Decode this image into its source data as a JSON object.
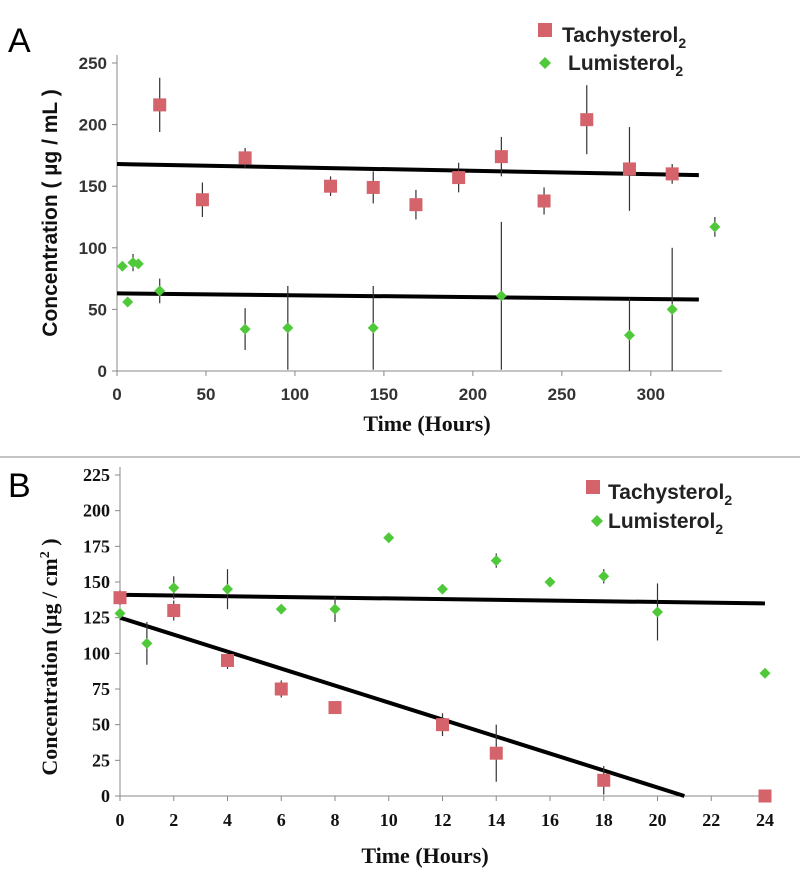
{
  "chart_data": [
    {
      "panel": "A",
      "type": "scatter",
      "xlabel": "Time (Hours)",
      "ylabel": "Concentration ( µg / mL )",
      "xlim": [
        0,
        340
      ],
      "ylim": [
        0,
        250
      ],
      "xticks": [
        0,
        50,
        100,
        150,
        200,
        250,
        300
      ],
      "yticks": [
        0,
        50,
        100,
        150,
        200,
        250
      ],
      "legend_position": "top-right",
      "colors": {
        "tachysterol": "#d4636b",
        "lumisterol": "#4fc93a",
        "trend": "#000000"
      },
      "series": [
        {
          "name": "Tachysterol",
          "subscript": "2",
          "marker": "square",
          "x": [
            24,
            48,
            72,
            120,
            144,
            168,
            192,
            216,
            240,
            264,
            288,
            312
          ],
          "y": [
            216,
            139,
            173,
            150,
            149,
            135,
            157,
            174,
            138,
            204,
            164,
            160
          ],
          "err": [
            22,
            14,
            8,
            8,
            13,
            12,
            12,
            16,
            11,
            28,
            34,
            8
          ],
          "trend": [
            168,
            159
          ]
        },
        {
          "name": "Lumisterol",
          "subscript": "2",
          "marker": "diamond",
          "x": [
            3,
            6,
            9,
            12,
            24,
            72,
            96,
            144,
            216,
            288,
            312,
            336
          ],
          "y": [
            85,
            56,
            88,
            87,
            65,
            34,
            35,
            35,
            61,
            29,
            50,
            117
          ],
          "err": [
            0,
            0,
            7,
            0,
            10,
            17,
            34,
            34,
            60,
            30,
            50,
            8
          ],
          "trend": [
            63,
            58
          ]
        }
      ]
    },
    {
      "panel": "B",
      "type": "scatter",
      "xlabel": "Time (Hours)",
      "ylabel": "Concentration (µg / cm",
      "ylabel_sup": "2",
      "ylabel_end": " )",
      "xlim": [
        0,
        24
      ],
      "ylim": [
        0,
        225
      ],
      "xticks": [
        0,
        2,
        4,
        6,
        8,
        10,
        12,
        14,
        16,
        18,
        20,
        22,
        24
      ],
      "yticks": [
        0,
        25,
        50,
        75,
        100,
        125,
        150,
        175,
        200,
        225
      ],
      "legend_position": "top-right",
      "colors": {
        "tachysterol": "#d4636b",
        "lumisterol": "#4fc93a",
        "trend": "#000000"
      },
      "series": [
        {
          "name": "Tachysterol",
          "subscript": "2",
          "marker": "square",
          "x": [
            0,
            2,
            4,
            6,
            8,
            12,
            14,
            18,
            24
          ],
          "y": [
            139,
            130,
            95,
            75,
            62,
            50,
            30,
            11,
            0
          ],
          "err": [
            5,
            7,
            6,
            6,
            4,
            8,
            20,
            10,
            0
          ],
          "trend": [
            125,
            0
          ],
          "trend_x": [
            0,
            21
          ]
        },
        {
          "name": "Lumisterol",
          "subscript": "2",
          "marker": "diamond",
          "x": [
            0,
            1,
            2,
            4,
            6,
            8,
            10,
            12,
            14,
            16,
            18,
            20,
            24
          ],
          "y": [
            128,
            107,
            146,
            145,
            131,
            131,
            181,
            145,
            165,
            150,
            154,
            129,
            86
          ],
          "err": [
            0,
            15,
            8,
            14,
            0,
            9,
            0,
            0,
            5,
            0,
            5,
            20,
            0
          ],
          "trend": [
            141,
            135
          ],
          "trend_x": [
            0,
            24
          ]
        }
      ]
    }
  ]
}
